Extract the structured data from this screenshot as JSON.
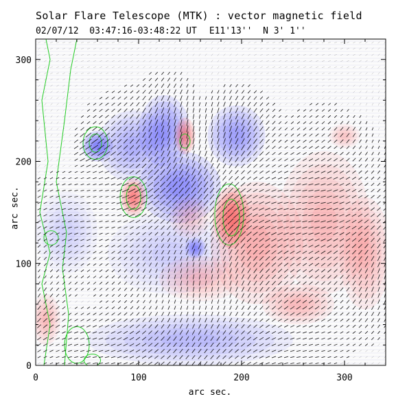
{
  "header": {
    "title": "Solar Flare Telescope (MTK) : vector magnetic field",
    "date_time": "02/07/12  03:47:16-03:48:22 UT",
    "position": "E11'13''  N 3' 1''"
  },
  "chart_data": {
    "type": "heatmap",
    "title": "Solar Flare Telescope (MTK) : vector magnetic field",
    "xlabel": "arc sec.",
    "ylabel": "arc sec.",
    "xlim": [
      0,
      340
    ],
    "ylim": [
      0,
      320
    ],
    "xticks": [
      0,
      100,
      200,
      300
    ],
    "yticks": [
      0,
      100,
      200,
      300
    ],
    "colors": {
      "positive": "#ff3c3c",
      "negative": "#3c3cff",
      "contour": "#22cc22",
      "vector": "#111111"
    },
    "positive_regions": [
      {
        "cx": 190,
        "cy": 145,
        "rx": 18,
        "ry": 30,
        "strength": 1.0
      },
      {
        "cx": 215,
        "cy": 120,
        "rx": 45,
        "ry": 60,
        "strength": 0.55
      },
      {
        "cx": 95,
        "cy": 165,
        "rx": 12,
        "ry": 18,
        "strength": 1.0
      },
      {
        "cx": 145,
        "cy": 225,
        "rx": 10,
        "ry": 18,
        "strength": 0.8
      },
      {
        "cx": 280,
        "cy": 140,
        "rx": 45,
        "ry": 70,
        "strength": 0.45
      },
      {
        "cx": 320,
        "cy": 110,
        "rx": 25,
        "ry": 55,
        "strength": 0.5
      },
      {
        "cx": 255,
        "cy": 60,
        "rx": 35,
        "ry": 20,
        "strength": 0.45
      },
      {
        "cx": 160,
        "cy": 85,
        "rx": 40,
        "ry": 22,
        "strength": 0.4
      },
      {
        "cx": 10,
        "cy": 45,
        "rx": 14,
        "ry": 25,
        "strength": 0.45
      },
      {
        "cx": 150,
        "cy": 145,
        "rx": 20,
        "ry": 20,
        "strength": 0.3
      },
      {
        "cx": 300,
        "cy": 225,
        "rx": 15,
        "ry": 12,
        "strength": 0.35
      }
    ],
    "negative_regions": [
      {
        "cx": 60,
        "cy": 215,
        "rx": 15,
        "ry": 15,
        "strength": 1.0
      },
      {
        "cx": 140,
        "cy": 175,
        "rx": 40,
        "ry": 35,
        "strength": 0.85
      },
      {
        "cx": 125,
        "cy": 230,
        "rx": 25,
        "ry": 35,
        "strength": 0.75
      },
      {
        "cx": 195,
        "cy": 225,
        "rx": 28,
        "ry": 30,
        "strength": 0.7
      },
      {
        "cx": 95,
        "cy": 215,
        "rx": 35,
        "ry": 35,
        "strength": 0.55
      },
      {
        "cx": 130,
        "cy": 110,
        "rx": 60,
        "ry": 40,
        "strength": 0.3
      },
      {
        "cx": 150,
        "cy": 25,
        "rx": 100,
        "ry": 25,
        "strength": 0.45
      },
      {
        "cx": 30,
        "cy": 130,
        "rx": 30,
        "ry": 40,
        "strength": 0.25
      },
      {
        "cx": 155,
        "cy": 115,
        "rx": 10,
        "ry": 10,
        "strength": 0.8
      }
    ],
    "contours": [
      {
        "cx": 58,
        "cy": 218,
        "rx": 12,
        "ry": 16
      },
      {
        "cx": 58,
        "cy": 218,
        "rx": 6,
        "ry": 9
      },
      {
        "cx": 95,
        "cy": 165,
        "rx": 13,
        "ry": 20
      },
      {
        "cx": 95,
        "cy": 165,
        "rx": 7,
        "ry": 12
      },
      {
        "cx": 188,
        "cy": 148,
        "rx": 14,
        "ry": 30
      },
      {
        "cx": 190,
        "cy": 145,
        "rx": 8,
        "ry": 18
      },
      {
        "cx": 145,
        "cy": 220,
        "rx": 5,
        "ry": 7
      },
      {
        "cx": 15,
        "cy": 125,
        "rx": 7,
        "ry": 7
      },
      {
        "cx": 40,
        "cy": 20,
        "rx": 12,
        "ry": 18
      },
      {
        "cx": 55,
        "cy": 5,
        "rx": 8,
        "ry": 6
      }
    ]
  }
}
